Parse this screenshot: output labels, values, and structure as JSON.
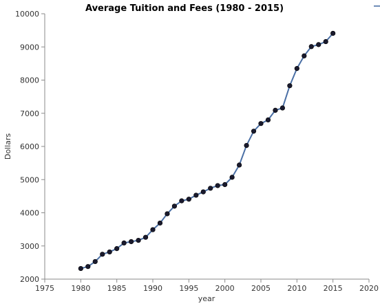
{
  "chart_data": {
    "type": "line",
    "title": "Average Tuition and Fees (1980 - 2015)",
    "xlabel": "year",
    "ylabel": "Dollars",
    "xlim": [
      1975,
      2020
    ],
    "ylim": [
      2000,
      10000
    ],
    "x_ticks": [
      1975,
      1980,
      1985,
      1990,
      1995,
      2000,
      2005,
      2010,
      2015,
      2020
    ],
    "y_ticks": [
      2000,
      3000,
      4000,
      5000,
      6000,
      7000,
      8000,
      9000,
      10000
    ],
    "grid": false,
    "series": [
      {
        "color": "#4a6fa5",
        "marker_color": "#1a1a2e",
        "points": [
          {
            "x": 1980,
            "y": 2320
          },
          {
            "x": 1981,
            "y": 2380
          },
          {
            "x": 1982,
            "y": 2530
          },
          {
            "x": 1983,
            "y": 2750
          },
          {
            "x": 1984,
            "y": 2820
          },
          {
            "x": 1985,
            "y": 2920
          },
          {
            "x": 1986,
            "y": 3090
          },
          {
            "x": 1987,
            "y": 3130
          },
          {
            "x": 1988,
            "y": 3170
          },
          {
            "x": 1989,
            "y": 3260
          },
          {
            "x": 1990,
            "y": 3490
          },
          {
            "x": 1991,
            "y": 3690
          },
          {
            "x": 1992,
            "y": 3970
          },
          {
            "x": 1993,
            "y": 4200
          },
          {
            "x": 1994,
            "y": 4360
          },
          {
            "x": 1995,
            "y": 4410
          },
          {
            "x": 1996,
            "y": 4530
          },
          {
            "x": 1997,
            "y": 4630
          },
          {
            "x": 1998,
            "y": 4740
          },
          {
            "x": 1999,
            "y": 4820
          },
          {
            "x": 2000,
            "y": 4850
          },
          {
            "x": 2001,
            "y": 5070
          },
          {
            "x": 2002,
            "y": 5440
          },
          {
            "x": 2003,
            "y": 6030
          },
          {
            "x": 2004,
            "y": 6460
          },
          {
            "x": 2005,
            "y": 6690
          },
          {
            "x": 2006,
            "y": 6800
          },
          {
            "x": 2007,
            "y": 7090
          },
          {
            "x": 2008,
            "y": 7160
          },
          {
            "x": 2009,
            "y": 7830
          },
          {
            "x": 2010,
            "y": 8350
          },
          {
            "x": 2011,
            "y": 8730
          },
          {
            "x": 2012,
            "y": 9010
          },
          {
            "x": 2013,
            "y": 9070
          },
          {
            "x": 2014,
            "y": 9160
          },
          {
            "x": 2015,
            "y": 9410
          }
        ]
      }
    ]
  }
}
